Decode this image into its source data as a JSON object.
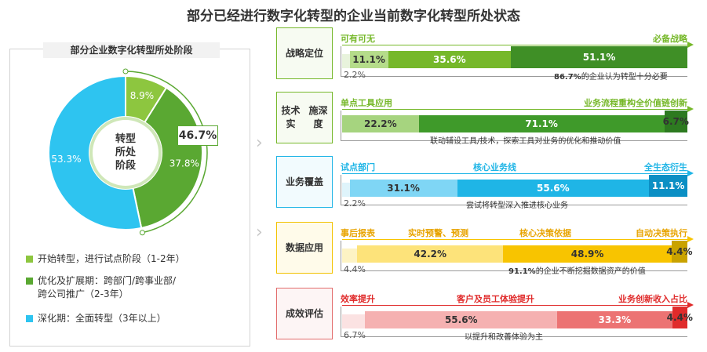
{
  "title": "部分已经进行数字化转型的企业当前数字化转型所处状态",
  "chart_data": [
    {
      "type": "pie",
      "title": "部分企业数字化转型所处阶段",
      "center_label": [
        "转型",
        "所处",
        "阶段"
      ],
      "slices": [
        {
          "name": "开始转型，进行试点阶段（1-2年）",
          "value": 8.9,
          "label": "8.9%",
          "color": "#8dc63f"
        },
        {
          "name": "优化及扩展期：跨部门/跨事业部/跨公司推广（2-3年）",
          "value": 37.8,
          "label": "37.8%",
          "color": "#5aa832"
        },
        {
          "name": "深化期：全面转型（3年以上）",
          "value": 53.3,
          "label": "53.3%",
          "color": "#2ec4f0"
        }
      ],
      "callout": "46.7%"
    },
    {
      "type": "bar",
      "orientation": "horizontal-stacked",
      "rows": [
        {
          "name": "战略定位",
          "label_lines": [
            "战略",
            "定位"
          ],
          "theme": "green",
          "scale_left": "可有可无",
          "scale_right": "必备战略",
          "segments": [
            {
              "value": 2.2,
              "label": "2.2%",
              "color": "#e8f3dc"
            },
            {
              "value": 11.1,
              "label": "11.1%",
              "color": "#b5dc8a"
            },
            {
              "value": 35.6,
              "label": "35.6%",
              "color": "#76b82a"
            },
            {
              "value": 51.1,
              "label": "51.1%",
              "color": "#3f8f26"
            }
          ],
          "note_bold": "86.7%",
          "note": "的企业认为转型十分必要"
        },
        {
          "name": "技术实施深度",
          "label_lines": [
            "技术实",
            "施深度"
          ],
          "theme": "green",
          "scale_left": "单点工具应用",
          "scale_right": "业务流程重构全价值链创新",
          "segments": [
            {
              "value": 22.2,
              "label": "22.2%",
              "color": "#a6d47f"
            },
            {
              "value": 71.1,
              "label": "71.1%",
              "color": "#3f9a2a"
            },
            {
              "value": 6.7,
              "label": "6.7%",
              "color": "#2d7a20"
            }
          ],
          "note_bold": "",
          "note": "联动辅设工具/技术，探索工具对业务的优化和推动价值"
        },
        {
          "name": "业务覆盖",
          "label_lines": [
            "业务",
            "覆盖"
          ],
          "theme": "blue",
          "scale_left": "试点部门",
          "scale_mid": "核心业务线",
          "scale_right": "全生态衍生",
          "segments": [
            {
              "value": 2.2,
              "label": "2.2%",
              "color": "#dff4fb"
            },
            {
              "value": 31.1,
              "label": "31.1%",
              "color": "#7fd6f5"
            },
            {
              "value": 55.6,
              "label": "55.6%",
              "color": "#1fb5e6"
            },
            {
              "value": 11.1,
              "label": "11.1%",
              "color": "#0b8fc4"
            }
          ],
          "note_bold": "",
          "note": "尝试将转型深入推进核心业务"
        },
        {
          "name": "数据应用",
          "label_lines": [
            "数据",
            "应用"
          ],
          "theme": "yellow",
          "scale_left": "事后报表",
          "scale_mid": "实时预警、预测",
          "scale_mid2": "核心决策依据",
          "scale_right": "自动决策执行",
          "segments": [
            {
              "value": 4.4,
              "label": "4.4%",
              "color": "#fdf3c4"
            },
            {
              "value": 42.2,
              "label": "42.2%",
              "color": "#fde37a"
            },
            {
              "value": 48.9,
              "label": "48.9%",
              "color": "#f8c400"
            },
            {
              "value": 4.4,
              "label": "4.4%",
              "color": "#c9a200"
            }
          ],
          "note_bold": "91.1%",
          "note": "的企业不断挖掘数据资产的价值"
        },
        {
          "name": "成效评估",
          "label_lines": [
            "成效",
            "评估"
          ],
          "theme": "red",
          "scale_left": "效率提升",
          "scale_mid": "客户及员工体验提升",
          "scale_right": "业务创新收入占比",
          "segments": [
            {
              "value": 6.7,
              "label": "6.7%",
              "color": "#fbe2e2"
            },
            {
              "value": 55.6,
              "label": "55.6%",
              "color": "#f5b1b1"
            },
            {
              "value": 33.3,
              "label": "33.3%",
              "color": "#ec7373"
            },
            {
              "value": 4.4,
              "label": "4.4%",
              "color": "#e02b2b"
            }
          ],
          "note_bold": "",
          "note": "以提升和改善体验为主"
        }
      ]
    }
  ],
  "legend": [
    {
      "text": "开始转型，进行试点阶段（1-2年）",
      "color": "#8dc63f"
    },
    {
      "text": "优化及扩展期：跨部门/跨事业部/",
      "text2": "跨公司推广（2-3年）",
      "color": "#5aa832"
    },
    {
      "text": "深化期：全面转型（3年以上）",
      "color": "#2ec4f0"
    }
  ],
  "colors": {
    "green": "#76b82a",
    "blue": "#1fb5e6",
    "yellow": "#f8c400",
    "red": "#e02b2b"
  }
}
